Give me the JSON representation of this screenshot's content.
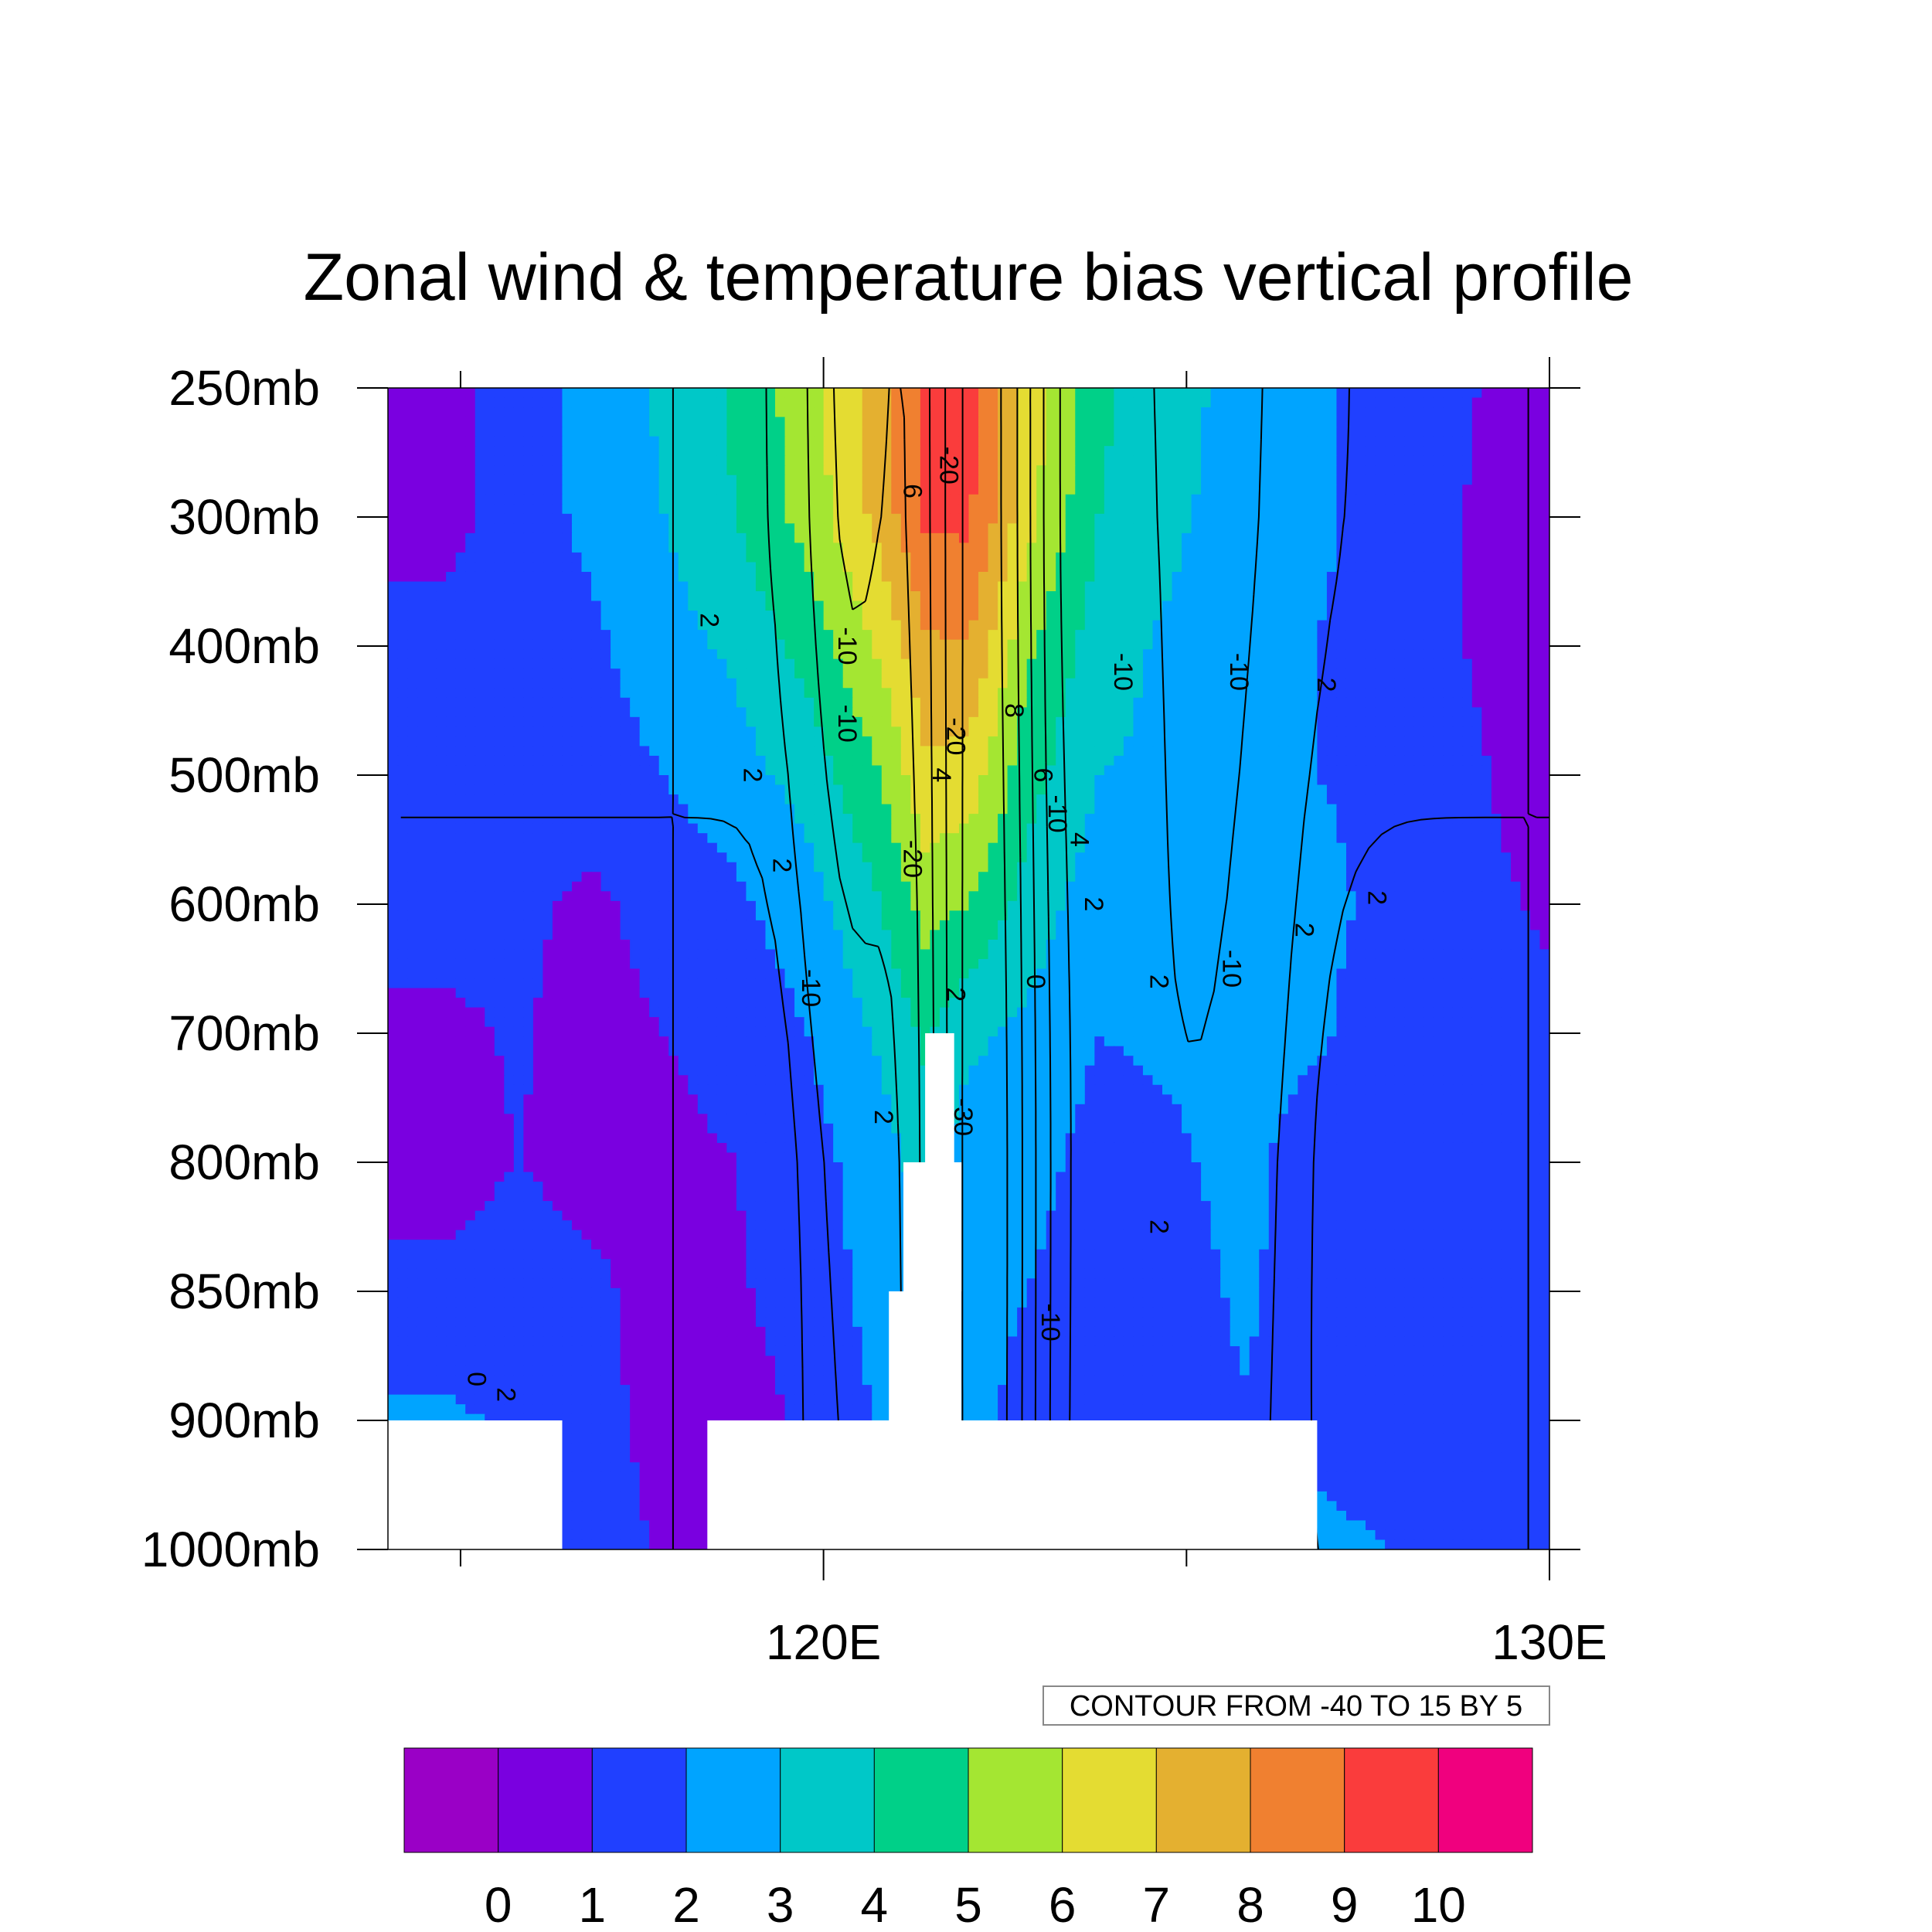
{
  "chart_data": {
    "type": "heatmap",
    "title": "Zonal wind & temperature bias vertical profile",
    "x_axis": {
      "range": [
        114,
        130
      ],
      "major_ticks": [
        {
          "value": 120,
          "label": "120E"
        },
        {
          "value": 130,
          "label": "130E"
        }
      ],
      "minor_ticks": [
        115,
        125
      ]
    },
    "y_axis": {
      "scale": "category-levels",
      "levels": [
        {
          "value": 250,
          "label": "250mb"
        },
        {
          "value": 300,
          "label": "300mb"
        },
        {
          "value": 400,
          "label": "400mb"
        },
        {
          "value": 500,
          "label": "500mb"
        },
        {
          "value": 600,
          "label": "600mb"
        },
        {
          "value": 700,
          "label": "700mb"
        },
        {
          "value": 800,
          "label": "800mb"
        },
        {
          "value": 850,
          "label": "850mb"
        },
        {
          "value": 900,
          "label": "900mb"
        },
        {
          "value": 1000,
          "label": "1000mb"
        }
      ],
      "orientation": "pressure decreasing upward"
    },
    "shading": {
      "variable": "temperature bias",
      "colorbar_levels": [
        "0",
        "1",
        "2",
        "3",
        "4",
        "5",
        "6",
        "7",
        "8",
        "9",
        "10"
      ],
      "colors": [
        "#9a00c6",
        "#7a00e0",
        "#2040ff",
        "#00a4ff",
        "#00c8c8",
        "#00d088",
        "#a4e632",
        "#e4dc32",
        "#e4b030",
        "#f08030",
        "#fa3c3c",
        "#f0007e"
      ],
      "x_columns": [
        114.8,
        115.8,
        116.8,
        117.8,
        118.8,
        119.8,
        120.8,
        121.4,
        122.0,
        122.8,
        123.8,
        124.8,
        125.8,
        126.8,
        127.8,
        128.8,
        129.9
      ],
      "pressure_rows": [
        250,
        300,
        400,
        500,
        600,
        700,
        800,
        850,
        900,
        1000
      ],
      "values": [
        [
          0.6,
          1.6,
          2.2,
          3.2,
          4.2,
          5.6,
          7.6,
          9.4,
          9.4,
          6.6,
          4.2,
          3.4,
          2.6,
          2.2,
          1.6,
          1.1,
          0.6
        ],
        [
          0.6,
          1.6,
          2.2,
          3.0,
          4.0,
          5.4,
          7.4,
          9.2,
          9.2,
          6.4,
          4.0,
          3.2,
          2.5,
          2.2,
          1.6,
          1.0,
          0.6
        ],
        [
          1.4,
          1.6,
          1.8,
          2.6,
          3.2,
          4.4,
          6.2,
          7.8,
          8.0,
          5.2,
          3.4,
          2.8,
          2.2,
          2.0,
          1.5,
          1.0,
          0.6
        ],
        [
          1.5,
          1.5,
          1.5,
          2.0,
          2.6,
          3.4,
          5.0,
          6.8,
          6.6,
          4.4,
          3.0,
          2.8,
          2.4,
          2.0,
          1.6,
          1.2,
          0.6
        ],
        [
          1.4,
          1.2,
          0.8,
          1.4,
          1.8,
          2.6,
          4.0,
          5.4,
          5.0,
          3.6,
          2.4,
          2.4,
          2.8,
          2.4,
          1.6,
          1.3,
          0.9
        ],
        [
          0.8,
          1.1,
          0.6,
          1.0,
          1.3,
          2.0,
          3.2,
          4.2,
          3.2,
          2.8,
          2.0,
          2.2,
          2.6,
          2.2,
          1.2,
          1.4,
          1.2
        ],
        [
          0.7,
          1.0,
          0.7,
          0.8,
          1.0,
          1.6,
          2.6,
          3.4,
          2.4,
          2.4,
          1.6,
          1.8,
          2.4,
          1.2,
          1.1,
          1.5,
          1.5
        ],
        [
          1.2,
          1.4,
          1.2,
          0.6,
          0.9,
          1.4,
          2.4,
          2.6,
          2.2,
          2.0,
          1.4,
          1.5,
          2.2,
          1.3,
          1.2,
          1.4,
          1.6
        ],
        [
          2.2,
          1.8,
          1.5,
          0.5,
          0.6,
          1.2,
          2.1,
          2.4,
          2.2,
          1.8,
          1.2,
          1.4,
          1.9,
          1.5,
          1.2,
          1.3,
          1.5
        ],
        [
          2.2,
          2.0,
          1.8,
          0.8,
          0.8,
          1.0,
          1.2,
          1.3,
          1.4,
          1.4,
          1.2,
          1.2,
          2.0,
          2.4,
          2.0,
          1.6,
          1.6
        ]
      ]
    },
    "masked_terrain": [
      {
        "x": [
          114,
          116.4
        ],
        "p": [
          900,
          1000
        ]
      },
      {
        "x": [
          118.4,
          126.8
        ],
        "p": [
          900,
          1000
        ]
      },
      {
        "x": [
          120.9,
          121.9
        ],
        "p": [
          850,
          900
        ]
      },
      {
        "x": [
          121.1,
          121.9
        ],
        "p": [
          800,
          850
        ]
      },
      {
        "x": [
          121.4,
          121.8
        ],
        "p": [
          700,
          800
        ]
      }
    ],
    "contour_info": "CONTOUR FROM -40 TO 15 BY 5",
    "contour_labels": [
      {
        "text": "-20",
        "x": 121.7,
        "p": 280
      },
      {
        "text": "6",
        "x": 121.2,
        "p": 290
      },
      {
        "text": "2",
        "x": 118.4,
        "p": 380
      },
      {
        "text": "-10",
        "x": 120.3,
        "p": 400
      },
      {
        "text": "-10",
        "x": 124.1,
        "p": 420
      },
      {
        "text": "-10",
        "x": 125.7,
        "p": 420
      },
      {
        "text": "2",
        "x": 126.9,
        "p": 430
      },
      {
        "text": "8",
        "x": 122.6,
        "p": 450
      },
      {
        "text": "-10",
        "x": 120.3,
        "p": 460
      },
      {
        "text": "-20",
        "x": 121.8,
        "p": 470
      },
      {
        "text": "2",
        "x": 119.0,
        "p": 500
      },
      {
        "text": "4",
        "x": 121.6,
        "p": 500
      },
      {
        "text": "6",
        "x": 123.0,
        "p": 500
      },
      {
        "text": "-10",
        "x": 123.2,
        "p": 530
      },
      {
        "text": "4",
        "x": 123.5,
        "p": 550
      },
      {
        "text": "-20",
        "x": 121.2,
        "p": 565
      },
      {
        "text": "2",
        "x": 119.4,
        "p": 570
      },
      {
        "text": "2",
        "x": 123.7,
        "p": 600
      },
      {
        "text": "2",
        "x": 127.6,
        "p": 595
      },
      {
        "text": "2",
        "x": 126.6,
        "p": 620
      },
      {
        "text": "-10",
        "x": 119.8,
        "p": 665
      },
      {
        "text": "0",
        "x": 122.9,
        "p": 660
      },
      {
        "text": "2",
        "x": 124.6,
        "p": 660
      },
      {
        "text": "-10",
        "x": 125.6,
        "p": 650
      },
      {
        "text": "2",
        "x": 121.8,
        "p": 670
      },
      {
        "text": "2",
        "x": 120.8,
        "p": 765
      },
      {
        "text": "-30",
        "x": 121.9,
        "p": 765
      },
      {
        "text": "2",
        "x": 124.6,
        "p": 825
      },
      {
        "text": "-10",
        "x": 123.1,
        "p": 862
      },
      {
        "text": "0",
        "x": 115.2,
        "p": 884
      },
      {
        "text": "2",
        "x": 115.6,
        "p": 890
      }
    ]
  }
}
